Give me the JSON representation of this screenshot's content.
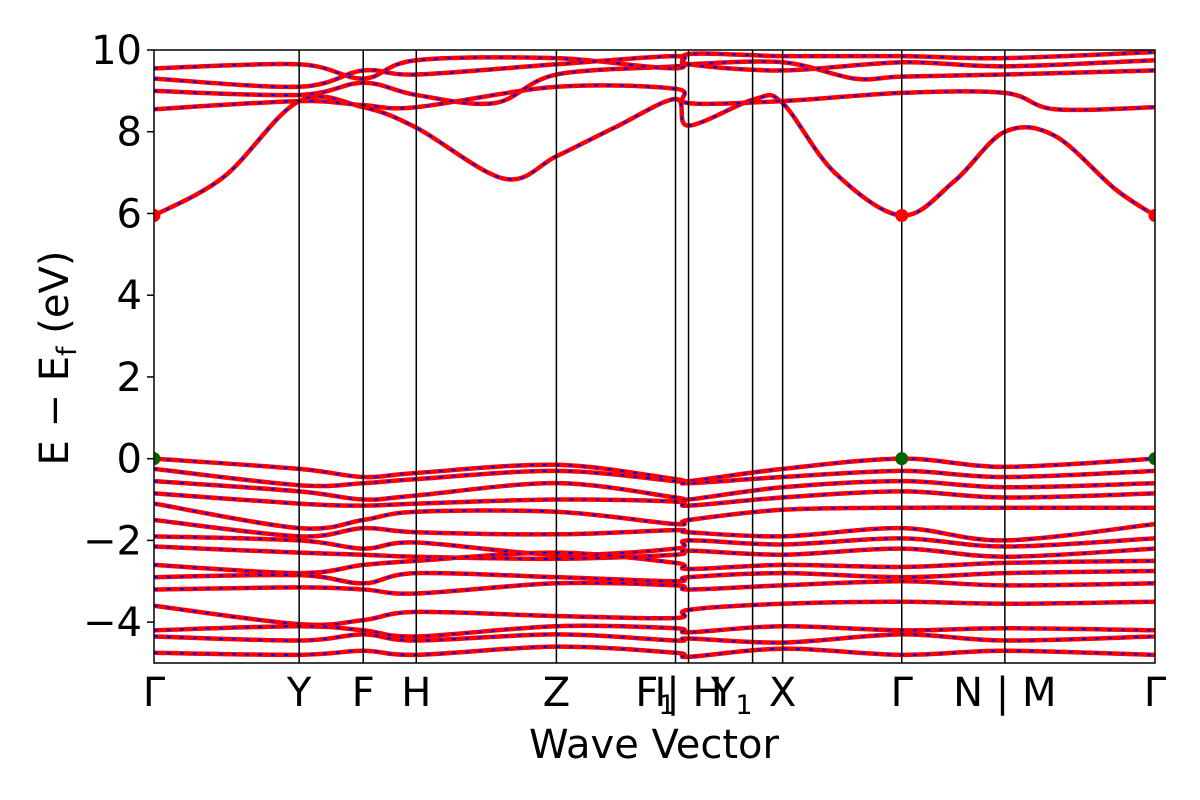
{
  "chart_data": {
    "type": "line",
    "title": "",
    "xlabel": "Wave Vector",
    "ylabel": "E − E_f (eV)",
    "ylabel_main": "E − E",
    "ylabel_sub": "f",
    "ylabel_unit": " (eV)",
    "ylim": [
      -5,
      10
    ],
    "yticks": [
      10,
      8,
      6,
      4,
      2,
      0,
      -2,
      -4
    ],
    "ytick_labels": [
      "10",
      "8",
      "6",
      "4",
      "2",
      "0",
      "−2",
      "−4"
    ],
    "x_range": [
      0,
      1
    ],
    "grid": false,
    "legend": "none",
    "kpoints": [
      {
        "x": 0.0,
        "label": "Γ"
      },
      {
        "x": 0.145,
        "label": "Y"
      },
      {
        "x": 0.209,
        "label": "F"
      },
      {
        "x": 0.262,
        "label": "H"
      },
      {
        "x": 0.402,
        "label": "Z"
      },
      {
        "x": 0.521,
        "label": "F",
        "sub": "1"
      },
      {
        "x": 0.534,
        "label": "I| H"
      },
      {
        "x": 0.598,
        "label": "Y",
        "sub": "1"
      },
      {
        "x": 0.628,
        "label": "X"
      },
      {
        "x": 0.747,
        "label": "Γ"
      },
      {
        "x": 0.85,
        "label": "N | M"
      },
      {
        "x": 1.0,
        "label": "Γ"
      }
    ],
    "subscript_1_label": "1",
    "colors": {
      "line_red": "#ff0000",
      "line_blue": "#0000ff",
      "marker_red": "#ff0000",
      "marker_green": "#006400"
    },
    "series": [
      {
        "x": [
          0,
          0.07,
          0.145,
          0.209,
          0.262,
          0.35,
          0.402,
          0.46,
          0.521,
          0.534,
          0.6,
          0.628,
          0.68,
          0.747,
          0.8,
          0.85,
          0.9,
          0.96,
          1.0
        ],
        "y": [
          5.95,
          6.9,
          8.75,
          8.6,
          8.1,
          6.85,
          7.4,
          8.1,
          8.8,
          8.15,
          8.8,
          8.7,
          7.0,
          5.95,
          6.8,
          8.0,
          7.9,
          6.6,
          5.95
        ]
      },
      {
        "x": [
          0,
          0.145,
          0.209,
          0.262,
          0.402,
          0.521,
          0.534,
          0.628,
          0.747,
          0.85,
          0.9,
          1.0
        ],
        "y": [
          8.55,
          8.75,
          8.65,
          8.6,
          9.1,
          9.05,
          8.7,
          8.75,
          8.95,
          8.95,
          8.55,
          8.6
        ]
      },
      {
        "x": [
          0,
          0.145,
          0.209,
          0.262,
          0.34,
          0.402,
          0.521,
          0.534,
          0.628,
          0.7,
          0.747,
          0.85,
          1.0
        ],
        "y": [
          9.0,
          8.9,
          9.2,
          8.9,
          8.7,
          9.4,
          9.6,
          9.65,
          9.7,
          9.3,
          9.35,
          9.4,
          9.5
        ]
      },
      {
        "x": [
          0,
          0.145,
          0.209,
          0.262,
          0.402,
          0.521,
          0.534,
          0.628,
          0.747,
          0.85,
          1.0
        ],
        "y": [
          9.55,
          9.65,
          9.3,
          9.75,
          9.8,
          9.55,
          9.9,
          9.85,
          9.85,
          9.8,
          9.95
        ]
      },
      {
        "x": [
          0,
          0.145,
          0.209,
          0.262,
          0.402,
          0.521,
          0.534,
          0.628,
          0.747,
          0.85,
          1.0
        ],
        "y": [
          9.3,
          9.1,
          9.5,
          9.4,
          9.65,
          9.85,
          9.65,
          9.5,
          9.7,
          9.6,
          9.75
        ]
      },
      {
        "x": [
          0,
          0.145,
          0.209,
          0.262,
          0.402,
          0.521,
          0.534,
          0.628,
          0.747,
          0.85,
          1.0
        ],
        "y": [
          0.0,
          -0.25,
          -0.45,
          -0.35,
          -0.15,
          -0.5,
          -0.55,
          -0.25,
          0.0,
          -0.2,
          0.0
        ]
      },
      {
        "x": [
          0,
          0.145,
          0.209,
          0.262,
          0.402,
          0.521,
          0.534,
          0.628,
          0.747,
          0.85,
          1.0
        ],
        "y": [
          -0.25,
          -0.65,
          -0.6,
          -0.5,
          -0.3,
          -0.55,
          -0.6,
          -0.45,
          -0.3,
          -0.45,
          -0.3
        ]
      },
      {
        "x": [
          0,
          0.145,
          0.209,
          0.262,
          0.402,
          0.521,
          0.534,
          0.628,
          0.747,
          0.85,
          1.0
        ],
        "y": [
          -0.55,
          -0.8,
          -1.0,
          -0.9,
          -0.6,
          -0.95,
          -1.0,
          -0.7,
          -0.55,
          -0.7,
          -0.6
        ]
      },
      {
        "x": [
          0,
          0.145,
          0.209,
          0.262,
          0.402,
          0.521,
          0.534,
          0.628,
          0.747,
          0.85,
          1.0
        ],
        "y": [
          -0.85,
          -1.1,
          -1.15,
          -1.1,
          -1.0,
          -1.05,
          -1.15,
          -0.95,
          -0.8,
          -0.95,
          -0.85
        ]
      },
      {
        "x": [
          0,
          0.145,
          0.209,
          0.262,
          0.402,
          0.521,
          0.534,
          0.628,
          0.747,
          0.85,
          1.0
        ],
        "y": [
          -1.1,
          -1.7,
          -1.5,
          -1.3,
          -1.3,
          -1.6,
          -1.5,
          -1.25,
          -1.2,
          -1.2,
          -1.2
        ]
      },
      {
        "x": [
          0,
          0.145,
          0.209,
          0.262,
          0.402,
          0.521,
          0.534,
          0.628,
          0.747,
          0.85,
          1.0
        ],
        "y": [
          -1.5,
          -1.9,
          -1.7,
          -1.8,
          -1.85,
          -1.75,
          -1.8,
          -1.9,
          -1.7,
          -2.0,
          -1.6
        ]
      },
      {
        "x": [
          0,
          0.145,
          0.209,
          0.262,
          0.402,
          0.521,
          0.534,
          0.628,
          0.747,
          0.85,
          1.0
        ],
        "y": [
          -1.9,
          -2.0,
          -2.2,
          -2.05,
          -2.35,
          -2.2,
          -2.0,
          -2.1,
          -1.95,
          -2.15,
          -1.95
        ]
      },
      {
        "x": [
          0,
          0.145,
          0.209,
          0.262,
          0.402,
          0.521,
          0.534,
          0.628,
          0.747,
          0.85,
          1.0
        ],
        "y": [
          -2.15,
          -2.3,
          -2.35,
          -2.4,
          -2.45,
          -2.35,
          -2.25,
          -2.35,
          -2.2,
          -2.4,
          -2.2
        ]
      },
      {
        "x": [
          0,
          0.145,
          0.209,
          0.262,
          0.402,
          0.521,
          0.534,
          0.628,
          0.747,
          0.85,
          1.0
        ],
        "y": [
          -2.6,
          -2.8,
          -2.6,
          -2.5,
          -2.3,
          -2.55,
          -2.7,
          -2.6,
          -2.65,
          -2.55,
          -2.5
        ]
      },
      {
        "x": [
          0,
          0.145,
          0.209,
          0.262,
          0.402,
          0.521,
          0.534,
          0.628,
          0.747,
          0.85,
          1.0
        ],
        "y": [
          -2.9,
          -2.85,
          -3.05,
          -2.8,
          -2.9,
          -3.0,
          -2.9,
          -2.8,
          -2.9,
          -2.8,
          -2.75
        ]
      },
      {
        "x": [
          0,
          0.145,
          0.209,
          0.262,
          0.402,
          0.521,
          0.534,
          0.628,
          0.747,
          0.85,
          1.0
        ],
        "y": [
          -3.2,
          -3.15,
          -3.2,
          -3.3,
          -3.05,
          -3.1,
          -3.2,
          -3.1,
          -3.0,
          -3.1,
          -3.05
        ]
      },
      {
        "x": [
          0,
          0.145,
          0.209,
          0.262,
          0.402,
          0.521,
          0.534,
          0.628,
          0.747,
          0.85,
          1.0
        ],
        "y": [
          -3.6,
          -4.05,
          -3.95,
          -3.75,
          -3.85,
          -3.9,
          -3.7,
          -3.55,
          -3.5,
          -3.55,
          -3.5
        ]
      },
      {
        "x": [
          0,
          0.145,
          0.209,
          0.262,
          0.402,
          0.521,
          0.534,
          0.628,
          0.747,
          0.85,
          1.0
        ],
        "y": [
          -4.2,
          -4.1,
          -4.2,
          -4.35,
          -4.1,
          -4.15,
          -4.25,
          -4.1,
          -4.2,
          -4.15,
          -4.2
        ]
      },
      {
        "x": [
          0,
          0.145,
          0.209,
          0.262,
          0.402,
          0.521,
          0.534,
          0.628,
          0.747,
          0.85,
          1.0
        ],
        "y": [
          -4.35,
          -4.45,
          -4.3,
          -4.45,
          -4.3,
          -4.45,
          -4.4,
          -4.5,
          -4.3,
          -4.45,
          -4.35
        ]
      },
      {
        "x": [
          0,
          0.145,
          0.209,
          0.262,
          0.402,
          0.521,
          0.534,
          0.628,
          0.747,
          0.85,
          1.0
        ],
        "y": [
          -4.75,
          -4.8,
          -4.7,
          -4.8,
          -4.6,
          -4.75,
          -4.85,
          -4.65,
          -4.8,
          -4.7,
          -4.8
        ]
      }
    ],
    "markers": [
      {
        "x": 0.0,
        "y": 5.95,
        "color": "red"
      },
      {
        "x": 0.747,
        "y": 5.95,
        "color": "red"
      },
      {
        "x": 1.0,
        "y": 5.95,
        "color": "red"
      },
      {
        "x": 0.0,
        "y": 0.0,
        "color": "green"
      },
      {
        "x": 0.747,
        "y": 0.0,
        "color": "green"
      },
      {
        "x": 1.0,
        "y": 0.0,
        "color": "green"
      }
    ]
  }
}
